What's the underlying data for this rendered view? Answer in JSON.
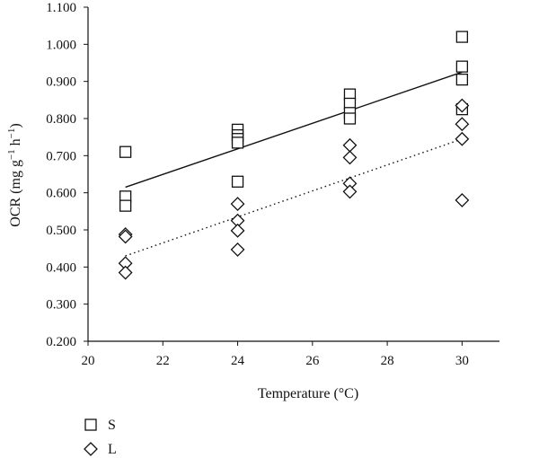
{
  "chart_data": {
    "type": "scatter",
    "xlabel": "Temperature (°C)",
    "ylabel_parts": [
      "OCR (mg g",
      "−1",
      " h",
      "−1",
      ")"
    ],
    "xlim": [
      20,
      31
    ],
    "ylim": [
      0.2,
      1.1
    ],
    "x_ticks": [
      20,
      22,
      24,
      26,
      28,
      30
    ],
    "x_tick_labels": [
      "20",
      "22",
      "24",
      "26",
      "28",
      "30"
    ],
    "y_ticks": [
      0.2,
      0.3,
      0.4,
      0.5,
      0.6,
      0.7,
      0.8,
      0.9,
      1.0,
      1.1
    ],
    "y_tick_labels": [
      "0.200",
      "0.300",
      "0.400",
      "0.500",
      "0.600",
      "0.700",
      "0.800",
      "0.900",
      "1.000",
      "1.100"
    ],
    "grid": false,
    "legend_position": "bottom-left",
    "series": [
      {
        "name": "S",
        "marker": "square",
        "color": "#111111",
        "points": [
          [
            21,
            0.71
          ],
          [
            21,
            0.59
          ],
          [
            21,
            0.565
          ],
          [
            24,
            0.77
          ],
          [
            24,
            0.755
          ],
          [
            24,
            0.745
          ],
          [
            24,
            0.735
          ],
          [
            24,
            0.63
          ],
          [
            27,
            0.865
          ],
          [
            27,
            0.84
          ],
          [
            27,
            0.815
          ],
          [
            27,
            0.8
          ],
          [
            30,
            1.02
          ],
          [
            30,
            0.94
          ],
          [
            30,
            0.905
          ],
          [
            30,
            0.825
          ]
        ],
        "trend": {
          "style": "solid",
          "from": [
            21,
            0.615
          ],
          "to": [
            30,
            0.925
          ]
        }
      },
      {
        "name": "L",
        "marker": "diamond",
        "color": "#111111",
        "points": [
          [
            21,
            0.488
          ],
          [
            21,
            0.482
          ],
          [
            21,
            0.41
          ],
          [
            21,
            0.385
          ],
          [
            24,
            0.57
          ],
          [
            24,
            0.525
          ],
          [
            24,
            0.498
          ],
          [
            24,
            0.447
          ],
          [
            27,
            0.728
          ],
          [
            27,
            0.695
          ],
          [
            27,
            0.625
          ],
          [
            27,
            0.603
          ],
          [
            30,
            0.835
          ],
          [
            30,
            0.785
          ],
          [
            30,
            0.745
          ],
          [
            30,
            0.58
          ]
        ],
        "trend": {
          "style": "dotted",
          "from": [
            21,
            0.43
          ],
          "to": [
            30,
            0.745
          ]
        }
      }
    ]
  }
}
